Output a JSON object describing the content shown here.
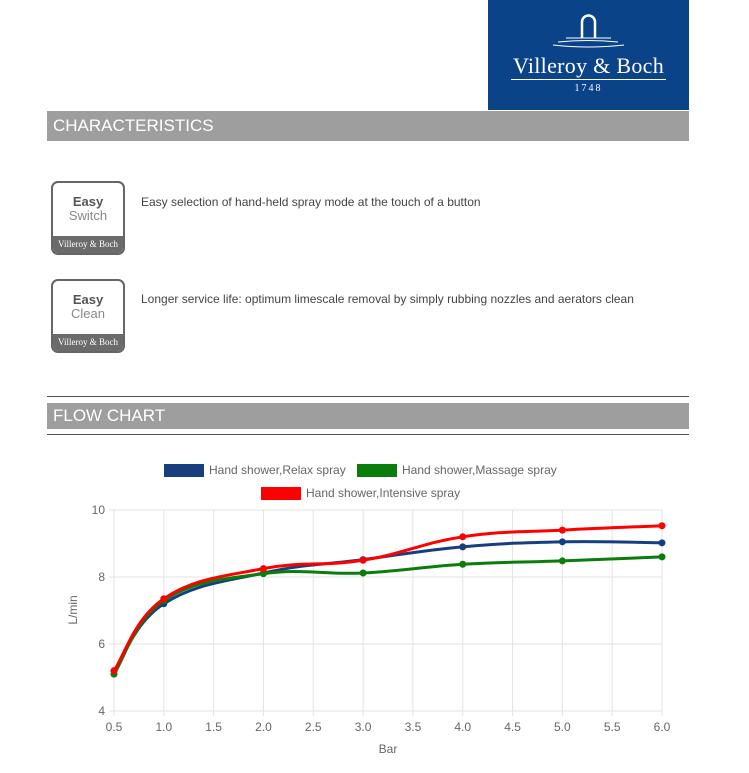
{
  "logo": {
    "name": "Villeroy & Boch",
    "year": "1748",
    "color": "#0b4389"
  },
  "characteristics": {
    "title": "CHARACTERISTICS",
    "items": [
      {
        "badge_top": "Easy",
        "badge_bottom": "Switch",
        "badge_brand": "Villeroy & Boch",
        "text": "Easy selection of hand-held spray mode at the touch of a button"
      },
      {
        "badge_top": "Easy",
        "badge_bottom": "Clean",
        "badge_brand": "Villeroy & Boch",
        "text": "Longer service life: optimum limescale removal by simply rubbing nozzles and aerators clean"
      }
    ]
  },
  "flow_chart": {
    "title": "FLOW CHART"
  },
  "chart_data": {
    "type": "line",
    "xlabel": "Bar",
    "ylabel": "L/min",
    "xlim": [
      0.5,
      6.0
    ],
    "ylim": [
      4,
      10
    ],
    "x_ticks": [
      "0.5",
      "1.0",
      "1.5",
      "2.0",
      "2.5",
      "3.0",
      "3.5",
      "4.0",
      "4.5",
      "5.0",
      "5.5",
      "6.0"
    ],
    "y_ticks": [
      "4",
      "6",
      "8",
      "10"
    ],
    "grid": true,
    "legend": "top",
    "x": [
      0.5,
      1.0,
      2.0,
      3.0,
      4.0,
      5.0,
      6.0
    ],
    "series": [
      {
        "name": "Hand shower,Relax spray",
        "color": "#173f7e",
        "values": [
          5.2,
          7.2,
          8.12,
          8.52,
          8.9,
          9.05,
          9.02
        ]
      },
      {
        "name": "Hand shower,Massage spray",
        "color": "#0a7d0a",
        "values": [
          5.1,
          7.3,
          8.1,
          8.12,
          8.38,
          8.48,
          8.6
        ]
      },
      {
        "name": "Hand shower,Intensive spray",
        "color": "#ff0000",
        "values": [
          5.2,
          7.35,
          8.25,
          8.5,
          9.2,
          9.4,
          9.53
        ]
      }
    ]
  }
}
